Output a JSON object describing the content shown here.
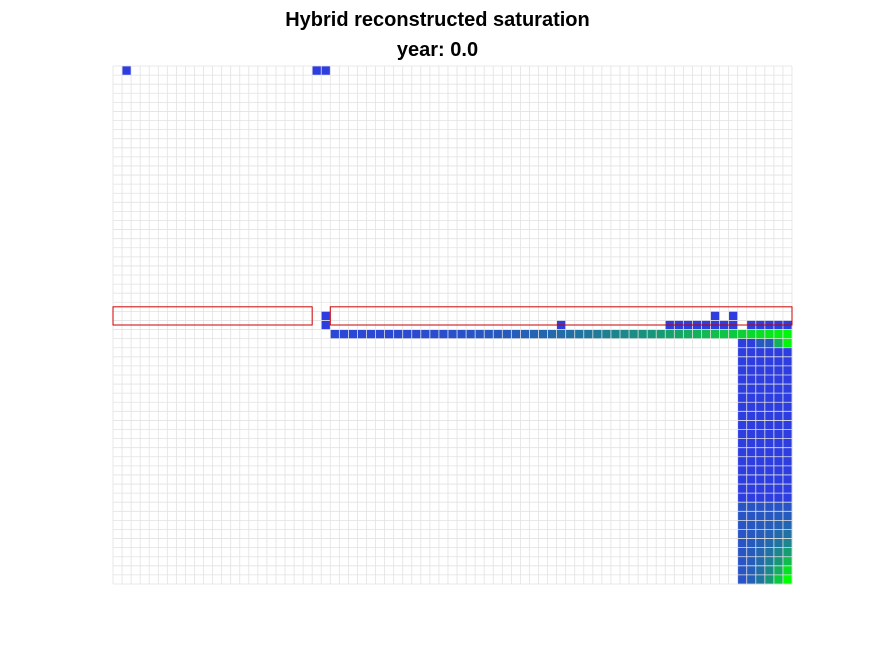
{
  "title": "Hybrid reconstructed saturation",
  "subtitle": "year: 0.0",
  "chart_data": {
    "type": "heatmap",
    "title": "Hybrid reconstructed saturation",
    "subtitle": "year: 0.0",
    "grid": true,
    "grid_size": {
      "nx": 75,
      "ny": 57
    },
    "colors": {
      "grid_line": "#e2e2e2",
      "low_saturation": "#2d3de0",
      "high_saturation": "#00ff00",
      "box_outline": "#cc0000"
    },
    "outlined_regions": [
      {
        "i0": 0,
        "i1": 21,
        "j0": 27,
        "j1": 29
      },
      {
        "i0": 24,
        "i1": 74,
        "j0": 27,
        "j1": 29
      }
    ],
    "cells": [
      {
        "i": 1,
        "j": 0,
        "v": 0
      },
      {
        "i": 22,
        "j": 0,
        "v": 0
      },
      {
        "i": 23,
        "j": 0,
        "v": 0
      },
      {
        "i": 23,
        "j": 27,
        "v": 0
      },
      {
        "i": 23,
        "j": 28,
        "v": 0
      },
      {
        "i": 49,
        "j": 28,
        "v": 0
      },
      {
        "i": 61,
        "j": 28,
        "v": 0
      },
      {
        "i": 62,
        "j": 28,
        "v": 0
      },
      {
        "i": 63,
        "j": 28,
        "v": 0
      },
      {
        "i": 64,
        "j": 28,
        "v": 0
      },
      {
        "i": 65,
        "j": 28,
        "v": 0
      },
      {
        "i": 66,
        "j": 27,
        "v": 0
      },
      {
        "i": 66,
        "j": 28,
        "v": 0
      },
      {
        "i": 67,
        "j": 28,
        "v": 0
      },
      {
        "i": 68,
        "j": 27,
        "v": 0
      },
      {
        "i": 68,
        "j": 28,
        "v": 0
      },
      {
        "i": 70,
        "j": 28,
        "v": 0
      },
      {
        "i": 71,
        "j": 28,
        "v": 0
      },
      {
        "i": 72,
        "j": 28,
        "v": 0
      },
      {
        "i": 73,
        "j": 28,
        "v": 0
      },
      {
        "i": 74,
        "j": 28,
        "v": 0
      }
    ],
    "row_bands": [
      {
        "j": 29,
        "i0": 24,
        "i1": 74,
        "v0": 0.05,
        "v1": 0.95
      }
    ],
    "column_blocks": [
      {
        "i0": 69,
        "i1": 70,
        "j": 30,
        "v": 0
      },
      {
        "i0": 71,
        "i1": 72,
        "j": 30,
        "v": 0.15
      },
      {
        "i0": 73,
        "i1": 73,
        "j": 30,
        "v": 0.6
      },
      {
        "i0": 74,
        "i1": 74,
        "j": 30,
        "v": 0.95
      }
    ],
    "plume": {
      "i0": 69,
      "i1": 74,
      "j0": 31,
      "j1": 56,
      "green_zone": {
        "j_start": 48
      }
    }
  }
}
